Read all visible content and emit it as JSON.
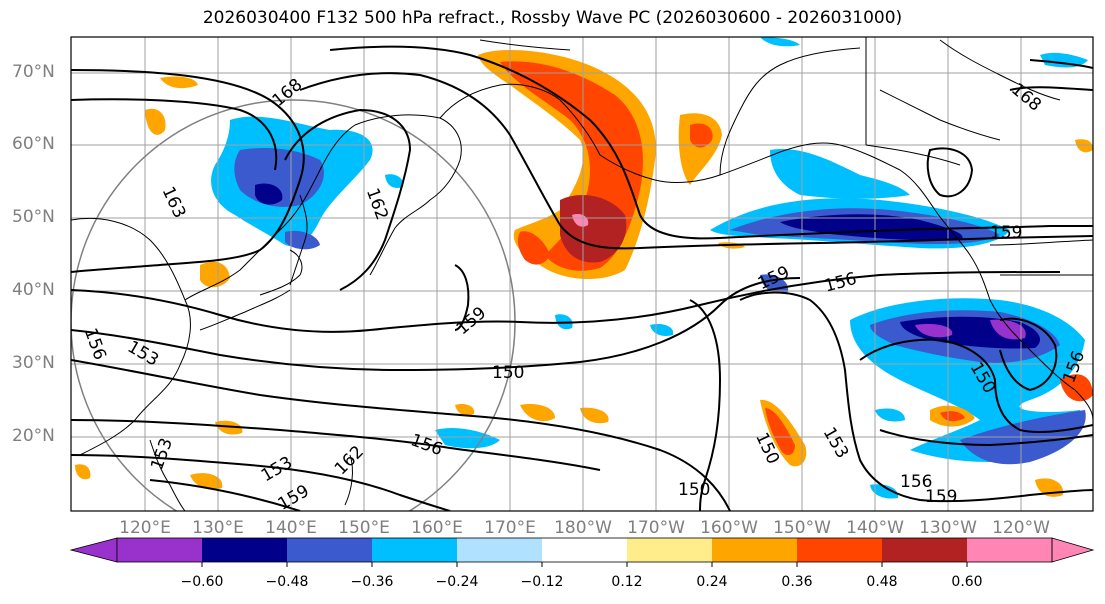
{
  "title": "2026030400 F132 500 hPa refract., Rossby Wave PC (2026030600 - 2026031000)",
  "lat_labels": [
    "70°N",
    "60°N",
    "50°N",
    "40°N",
    "30°N",
    "20°N"
  ],
  "lon_labels": [
    "120°E",
    "130°E",
    "140°E",
    "150°E",
    "160°E",
    "170°E",
    "180°W",
    "170°W",
    "160°W",
    "150°W",
    "140°W",
    "130°W",
    "120°W"
  ],
  "colorbar": {
    "ticks": [
      "−0.60",
      "−0.48",
      "−0.36",
      "−0.24",
      "−0.12",
      "0.12",
      "0.24",
      "0.36",
      "0.48",
      "0.60"
    ],
    "colors": [
      "#9932cc",
      "#00008b",
      "#3a5acd",
      "#00bfff",
      "#b0e2ff",
      "#ffffff",
      "#ffec8b",
      "#ffa500",
      "#ff4500",
      "#b22222",
      "#ff86b4"
    ]
  },
  "contour_labels": [
    "168",
    "163",
    "162",
    "159",
    "156",
    "153",
    "150",
    "153",
    "156",
    "159",
    "162",
    "150",
    "153",
    "156",
    "159",
    "156",
    "150",
    "159",
    "168",
    "159",
    "156",
    "153",
    "150"
  ],
  "colors": {
    "frame": "#000000",
    "grid": "#a0a0a0",
    "coast": "#000000",
    "tick_label": "#7f7f7f"
  }
}
